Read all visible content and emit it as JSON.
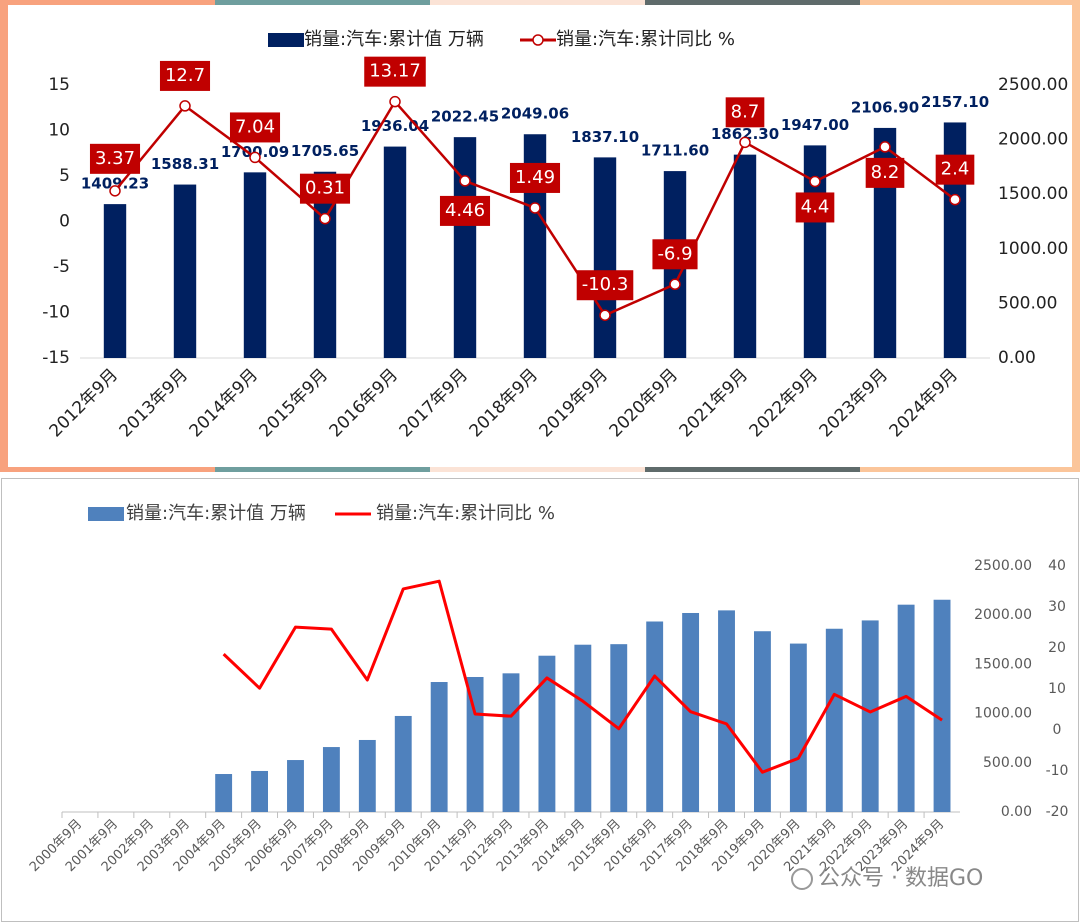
{
  "chart_data": [
    {
      "type": "combo",
      "categories": [
        "2012年9月",
        "2013年9月",
        "2014年9月",
        "2015年9月",
        "2016年9月",
        "2017年9月",
        "2018年9月",
        "2019年9月",
        "2020年9月",
        "2021年9月",
        "2022年9月",
        "2023年9月",
        "2024年9月"
      ],
      "series": [
        {
          "name": "销量:汽车:累计值 万辆",
          "type": "bar",
          "axis": "y2",
          "color": "#002060",
          "values": [
            1409.23,
            1588.31,
            1700.09,
            1705.65,
            1936.04,
            2022.45,
            2049.06,
            1837.1,
            1711.6,
            1862.3,
            1947,
            2106.9,
            2157.1
          ],
          "value_labels": [
            "1409.23",
            "1588.31",
            "1700.09",
            "1705.65",
            "1936.04",
            "2022.45",
            "2049.06",
            "1837.10",
            "1711.60",
            "1862.30",
            "1947.00",
            "2106.90",
            "2157.10"
          ]
        },
        {
          "name": "销量:汽车:累计同比 %",
          "type": "line",
          "axis": "y",
          "color": "#c00000",
          "markers": true,
          "data_labels": true,
          "values": [
            3.37,
            12.7,
            7.04,
            0.31,
            13.17,
            4.46,
            1.49,
            -10.3,
            -6.9,
            8.7,
            4.4,
            8.2,
            2.4
          ]
        }
      ],
      "ylim": [
        -15,
        15
      ],
      "yticks": [
        -15,
        -10,
        -5,
        0,
        5,
        10,
        15
      ],
      "y2lim": [
        0,
        2500
      ],
      "y2ticks": [
        {
          "value": 0,
          "label": "0.00"
        },
        {
          "value": 500,
          "label": "500.00"
        },
        {
          "value": 1000,
          "label": "1000.00"
        },
        {
          "value": 1500,
          "label": "1500.00"
        },
        {
          "value": 2000,
          "label": "2000.00"
        },
        {
          "value": 2500,
          "label": "2500.00"
        }
      ],
      "grid": false,
      "legend": "top"
    },
    {
      "type": "combo",
      "categories": [
        "2000年9月",
        "2001年9月",
        "2002年9月",
        "2003年9月",
        "2004年9月",
        "2005年9月",
        "2006年9月",
        "2007年9月",
        "2008年9月",
        "2009年9月",
        "2010年9月",
        "2011年9月",
        "2012年9月",
        "2013年9月",
        "2014年9月",
        "2015年9月",
        "2016年9月",
        "2017年9月",
        "2018年9月",
        "2019年9月",
        "2020年9月",
        "2021年9月",
        "2022年9月",
        "2023年9月",
        "2024年9月"
      ],
      "series": [
        {
          "name": "销量:汽车:累计值 万辆",
          "type": "bar",
          "axis": "y",
          "color": "#4f81bd",
          "values": [
            null,
            null,
            null,
            null,
            386,
            417,
            528,
            660,
            732,
            976,
            1321,
            1372,
            1409.23,
            1588.31,
            1700.09,
            1705.65,
            1936.04,
            2022.45,
            2049.06,
            1837.1,
            1711.6,
            1862.3,
            1947,
            2106.9,
            2157.1
          ]
        },
        {
          "name": "销量:汽车:累计同比 %",
          "type": "line",
          "axis": "y2",
          "color": "#ff0000",
          "values": [
            null,
            null,
            null,
            null,
            18.5,
            10.2,
            25.1,
            24.6,
            12.2,
            34.4,
            36.3,
            3.9,
            3.37,
            12.7,
            7.04,
            0.31,
            13.17,
            4.46,
            1.49,
            -10.3,
            -6.9,
            8.7,
            4.4,
            8.2,
            2.4
          ]
        }
      ],
      "ylim": [
        0,
        2500
      ],
      "yticks": [
        {
          "value": 0,
          "label": "0.00"
        },
        {
          "value": 500,
          "label": "500.00"
        },
        {
          "value": 1000,
          "label": "1000.00"
        },
        {
          "value": 1500,
          "label": "1500.00"
        },
        {
          "value": 2000,
          "label": "2000.00"
        },
        {
          "value": 2500,
          "label": "2500.00"
        }
      ],
      "y2lim": [
        -20,
        40
      ],
      "y2ticks": [
        -20,
        -10,
        0,
        10,
        20,
        30,
        40
      ],
      "grid": false,
      "legend": "top"
    }
  ],
  "watermark": "公众号 · 数据GO"
}
